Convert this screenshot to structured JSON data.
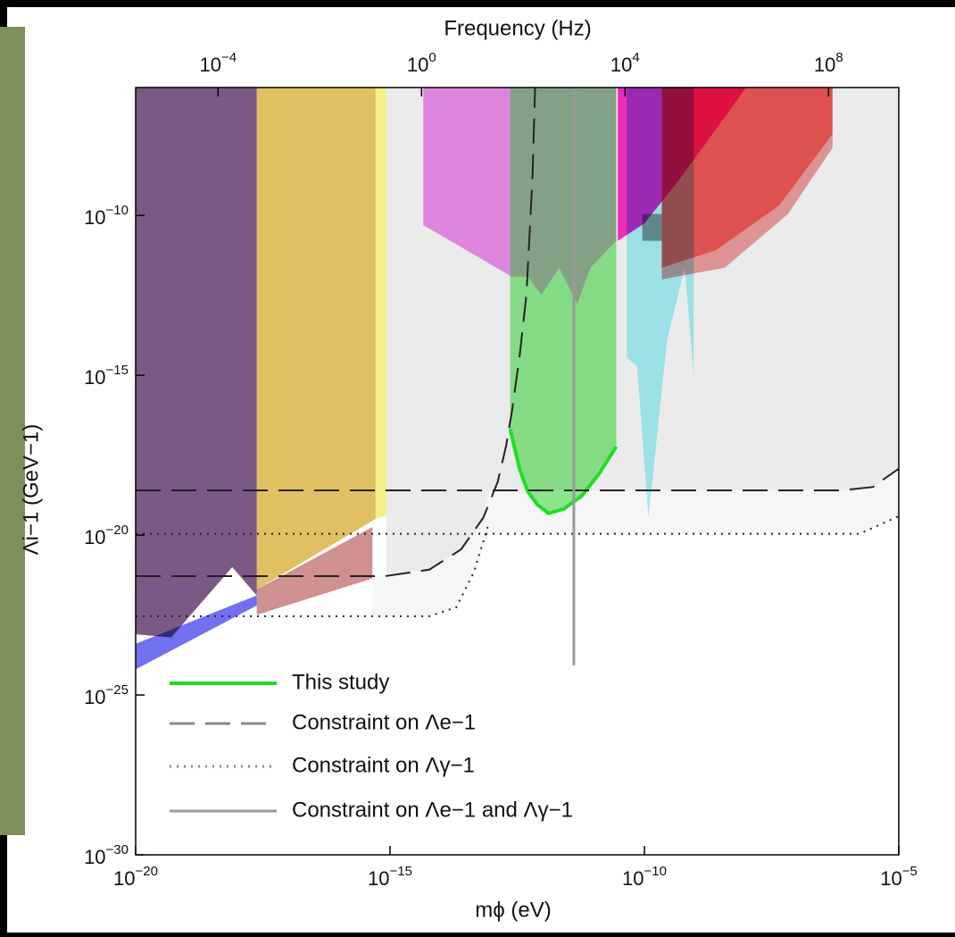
{
  "chart_data": {
    "type": "line",
    "title": "Frequency (Hz)",
    "x_label": "mϕ (eV)",
    "y_label": "Λi−1 (GeV−1)",
    "log_x": true,
    "log_y": true,
    "xlim": [
      1e-20,
      1e-05
    ],
    "ylim": [
      1e-30,
      1e-06
    ],
    "x2lim": [
      2.4e-06,
      2400000000.0
    ],
    "xticks": [
      {
        "value": 1e-20,
        "label": "10−20"
      },
      {
        "value": 1e-15,
        "label": "10−15"
      },
      {
        "value": 1e-10,
        "label": "10−10"
      },
      {
        "value": 1e-05,
        "label": "10−5"
      }
    ],
    "yticks": [
      {
        "value": 1e-30,
        "label": "10−30"
      },
      {
        "value": 1e-25,
        "label": "10−25"
      },
      {
        "value": 1e-20,
        "label": "10−20"
      },
      {
        "value": 1e-15,
        "label": "10−15"
      },
      {
        "value": 1e-10,
        "label": "10−10"
      }
    ],
    "x2ticks": [
      {
        "value": 0.0001,
        "label": "10−4"
      },
      {
        "value": 1,
        "label": "100"
      },
      {
        "value": 10000,
        "label": "104"
      },
      {
        "value": 100000000,
        "label": "108"
      }
    ],
    "regions": [
      {
        "color": "#ebebeb",
        "x": [
          8.5e-16,
          1e-05,
          1e-05,
          3.1e-06,
          7.4e-07,
          8.9e-14,
          6.8e-14,
          2.5e-14,
          5.9e-15,
          8.5e-16
        ],
        "y": [
          1e-06,
          1e-06,
          1.2e-18,
          3.2e-19,
          2.5e-19,
          2.5e-19,
          3.5e-20,
          3.6e-21,
          8.3e-22,
          6.3e-22
        ]
      },
      {
        "color": "#f6f6f6",
        "x": [
          4.5e-16,
          5.9e-15,
          2.5e-14,
          6.8e-14,
          8.9e-14,
          7.4e-07,
          3.1e-06,
          1e-05,
          1e-05,
          1.7e-06,
          8.3e-14,
          4.5e-14,
          2e-14,
          5.9e-15,
          4.5e-16
        ],
        "y": [
          5.2e-22,
          8.3e-22,
          3.6e-21,
          3.5e-20,
          2.5e-19,
          2.5e-19,
          3.2e-19,
          1.2e-18,
          3.9e-20,
          1.1e-20,
          1.1e-20,
          7.2e-22,
          5.5e-23,
          2.9e-23,
          2.9e-23
        ]
      },
      {
        "color": "#7a5a85",
        "x": [
          1e-20,
          2.4e-18,
          2.4e-18,
          7.9e-19,
          5e-20,
          1e-20
        ],
        "y": [
          1e-06,
          1e-06,
          1.3e-22,
          1e-21,
          6.3e-24,
          7.9e-24
        ]
      },
      {
        "color": "#7070f0",
        "x": [
          1e-20,
          2.4e-18,
          2.4e-18,
          1e-20
        ],
        "y": [
          4e-24,
          1.3e-22,
          6.3e-23,
          6.3e-25
        ]
      },
      {
        "color": "#d09090",
        "x": [
          2.4e-18,
          4.5e-16,
          4.5e-16,
          2.4e-18
        ],
        "y": [
          2e-22,
          1.8e-20,
          4.4e-22,
          3.2e-23
        ]
      },
      {
        "color": "#e0c060",
        "x": [
          2.4e-18,
          5.2e-16,
          5.2e-16,
          2.4e-18
        ],
        "y": [
          1e-06,
          1e-06,
          3.2e-20,
          2e-22
        ]
      },
      {
        "color": "#f4f08a",
        "x": [
          5.2e-16,
          8.5e-16,
          8.5e-16,
          5.2e-16
        ],
        "y": [
          1e-06,
          1e-06,
          4e-20,
          3.2e-20
        ]
      },
      {
        "color": "#f090f0",
        "x": [
          4.5e-15,
          2.3e-13,
          2.3e-13,
          4.5e-15
        ],
        "y": [
          1e-06,
          1e-06,
          1.3e-12,
          5e-11
        ]
      },
      {
        "color": "#ffbcff",
        "x": [
          2.3e-13,
          2.8e-11,
          2.8e-11,
          8.7e-12,
          4.8e-12,
          2.1e-12,
          9.5e-13,
          5.1e-13,
          2.3e-13
        ],
        "y": [
          1e-06,
          1e-06,
          1.6e-11,
          2.3e-12,
          1.7e-13,
          2.3e-12,
          3.3e-13,
          1.2e-12,
          1.2e-12
        ]
      },
      {
        "color": "#a8f4f8",
        "x": [
          4.5e-11,
          9.3e-10,
          9.3e-10,
          6.2e-10,
          2.8e-10,
          1.2e-10,
          7.2e-11,
          4.5e-11
        ],
        "y": [
          1e-06,
          1e-06,
          1e-15,
          2.3e-12,
          1.3e-14,
          3.5e-20,
          1.9e-15,
          3.6e-15
        ]
      },
      {
        "color": "#ff30c8",
        "x": [
          3e-11,
          1e-08,
          5e-10,
          1e-10,
          3e-11
        ],
        "y": [
          1e-06,
          1e-06,
          1.4e-09,
          5.6e-11,
          1.6e-11
        ]
      },
      {
        "color": "#9a9a9a",
        "x": [
          9.1e-11,
          2.2e-10,
          2.2e-10,
          9.1e-11
        ],
        "y": [
          1.1e-10,
          1.1e-10,
          1.6e-11,
          1.6e-11
        ]
      },
      {
        "color": "#f0a0a0",
        "x": [
          2.2e-10,
          2.6e-09,
          4.4e-08,
          5e-07,
          5e-07,
          6.6e-08,
          3.8e-09,
          2.2e-10
        ],
        "y": [
          2.3e-12,
          8.3e-12,
          2e-10,
          3.5e-08,
          1.3e-08,
          1.1e-10,
          2.3e-12,
          1e-12
        ]
      },
      {
        "color": "#f05858",
        "x": [
          2.2e-10,
          5e-07,
          5e-07,
          4.4e-08,
          2.6e-09,
          2.2e-10
        ],
        "y": [
          1e-06,
          1e-06,
          3.5e-08,
          2e-10,
          8.3e-12,
          2.3e-12
        ]
      }
    ],
    "series": [
      {
        "name": "This study",
        "color": "#22dd22",
        "style": "solid",
        "fill": "#90ee90",
        "x": [
          2.3e-13,
          3.5e-13,
          5.1e-13,
          7.8e-13,
          1.3e-12,
          2.6e-12,
          5.9e-12,
          1.3e-11,
          2.8e-11
        ],
        "y": [
          2.1e-17,
          1.2e-18,
          2.3e-19,
          9.1e-20,
          4.8e-20,
          6.6e-20,
          1.7e-19,
          8.5e-19,
          5.9e-18
        ]
      },
      {
        "name": "Constraint on Λe−1",
        "color": "#222222",
        "style": "dashed",
        "x": [
          1e-20,
          7.8e-16,
          5.9e-15,
          2.5e-14,
          6.8e-14,
          1.3e-13,
          1.9e-13,
          2.5e-13,
          3.5e-13,
          4.8e-13,
          6.3e-13,
          7.1e-13,
          null,
          1e-20,
          7.4e-07,
          3.1e-06,
          1e-05
        ],
        "y": [
          5.2e-22,
          5.2e-22,
          8.3e-22,
          3.6e-21,
          3.5e-20,
          4.5e-19,
          5.9e-18,
          7.8e-17,
          3.6e-15,
          3.3e-13,
          1.4e-09,
          1e-06,
          null,
          2.5e-19,
          2.5e-19,
          3.2e-19,
          1.2e-18
        ]
      },
      {
        "name": "Constraint on Λγ−1",
        "color": "#222222",
        "style": "dotted",
        "x": [
          1e-20,
          5.9e-15,
          2e-14,
          4.5e-14,
          8.3e-14,
          null,
          1e-20,
          1.7e-06,
          1e-05
        ],
        "y": [
          2.9e-23,
          2.9e-23,
          5.5e-23,
          7.2e-22,
          1.8e-20,
          null,
          1.1e-20,
          1.1e-20,
          3.9e-20
        ]
      },
      {
        "name": "Constraint on Λe−1 and Λγ−1",
        "color": "#999999",
        "style": "solid",
        "x": [
          4.1e-12,
          4.1e-12
        ],
        "y": [
          1e-06,
          8.5e-25
        ]
      }
    ]
  }
}
